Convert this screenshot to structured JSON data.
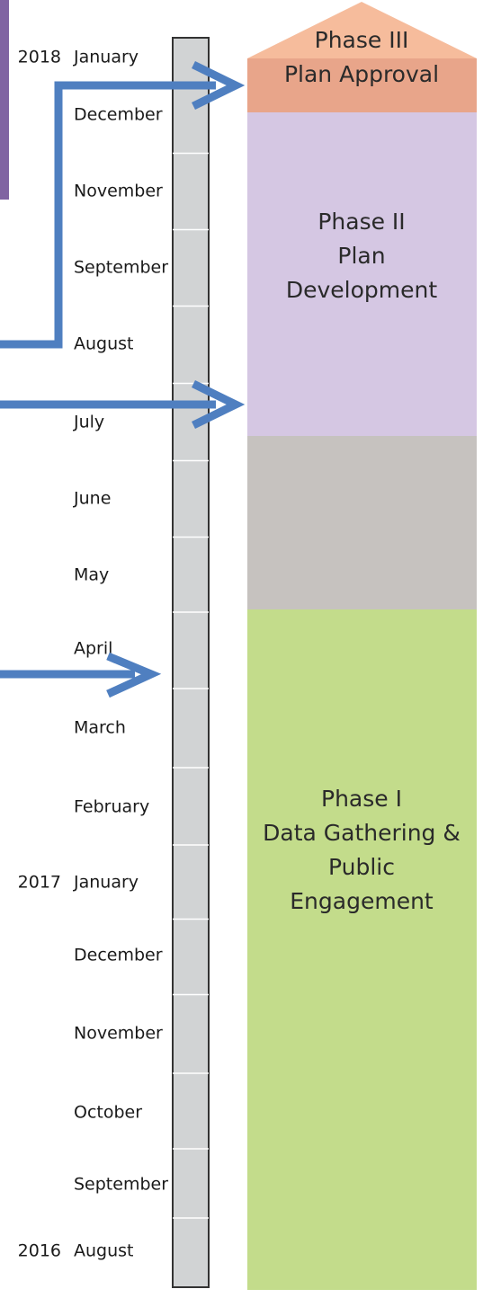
{
  "timeline": [
    {
      "year": "2018",
      "month": "January"
    },
    {
      "month": "December"
    },
    {
      "month": "November"
    },
    {
      "month": "September"
    },
    {
      "month": "August"
    },
    {
      "month": "July"
    },
    {
      "month": "June"
    },
    {
      "month": "May"
    },
    {
      "month": "April"
    },
    {
      "month": "March"
    },
    {
      "month": "February"
    },
    {
      "year": "2017",
      "month": "January"
    },
    {
      "month": "December"
    },
    {
      "month": "November"
    },
    {
      "month": "October"
    },
    {
      "month": "September"
    },
    {
      "year": "2016",
      "month": "August"
    }
  ],
  "phases": [
    {
      "lines": [
        "Phase III",
        "Plan Approval"
      ]
    },
    {
      "lines": [
        "Phase II",
        "Plan",
        "Development"
      ]
    },
    {
      "lines": [
        "Phase I",
        "Data Gathering &",
        "Public",
        "Engagement"
      ]
    }
  ]
}
